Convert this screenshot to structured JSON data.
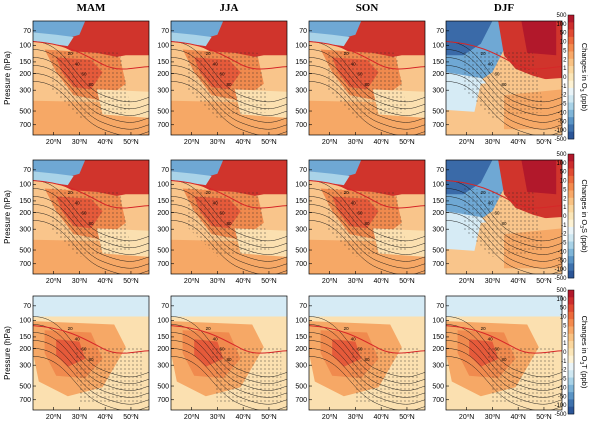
{
  "chart_data": {
    "type": "heatmap",
    "layout": "3x4 grid of latitude-pressure contour panels",
    "columns": [
      "MAM",
      "JJA",
      "SON",
      "DJF"
    ],
    "rows": [
      {
        "colorbar_label": "Changes in O3 (ppb)",
        "colorbar_label_main": "Changes in O",
        "colorbar_label_sub": "3",
        "colorbar_label_tail": " (ppb)"
      },
      {
        "colorbar_label": "Changes in O3S (ppb)",
        "colorbar_label_main": "Changes in O",
        "colorbar_label_sub": "3",
        "colorbar_label_tail": "S (ppb)"
      },
      {
        "colorbar_label": "Changes in O3T (ppb)",
        "colorbar_label_main": "Changes in O",
        "colorbar_label_sub": "3",
        "colorbar_label_tail": "T (ppb)"
      }
    ],
    "ylabel": "Pressure (hPa)",
    "yticks": [
      70,
      100,
      150,
      200,
      300,
      500,
      700
    ],
    "xticks": [
      "20°N",
      "30°N",
      "40°N",
      "50°N"
    ],
    "xticks_parts": [
      {
        "num": "20",
        "deg": "o",
        "dir": "N"
      },
      {
        "num": "30",
        "deg": "o",
        "dir": "N"
      },
      {
        "num": "40",
        "deg": "o",
        "dir": "N"
      },
      {
        "num": "50",
        "deg": "o",
        "dir": "N"
      }
    ],
    "colorbar_ticks": [
      "500",
      "100",
      "50",
      "10",
      "5",
      "2",
      "1",
      "0",
      "-1",
      "-2",
      "-5",
      "-10",
      "-50",
      "-100",
      "-500"
    ],
    "colorbar_colors": [
      "#b2182b",
      "#cc2d2d",
      "#e04a32",
      "#ec6a3c",
      "#f48a4e",
      "#f8a868",
      "#f9c283",
      "#fbd79e",
      "#fbe6b8",
      "#fdf2d4",
      "#eaf4f8",
      "#cfe8f2",
      "#a8d2e7",
      "#7fb5d8",
      "#5a94c5",
      "#3f72ad",
      "#2b5597"
    ],
    "contour_labels": [
      "20",
      "40",
      "60",
      "80"
    ],
    "tropopause_line_color": "#d62728",
    "stippling": "statistically significant regions"
  }
}
